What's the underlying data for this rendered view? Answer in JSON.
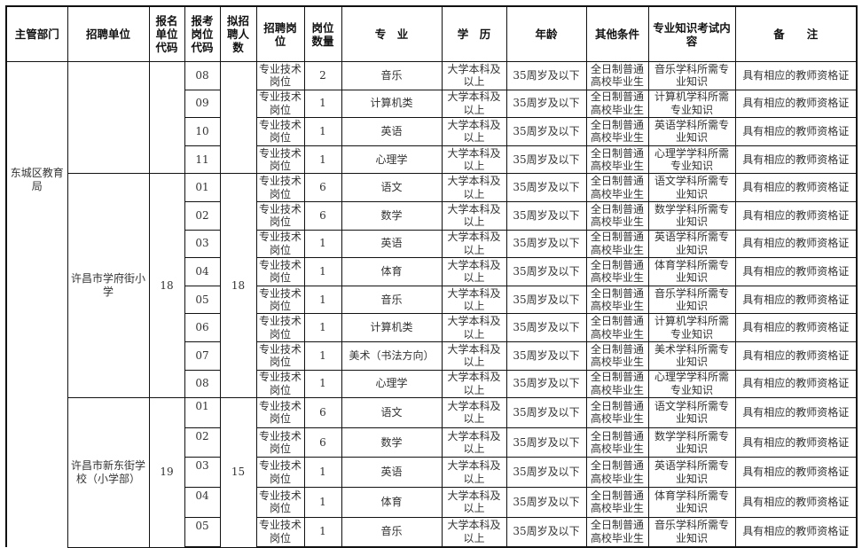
{
  "table": {
    "headers": [
      "主管部门",
      "招聘单位",
      "报名单位代码",
      "报考岗位代码",
      "拟招聘人数",
      "招聘岗位",
      "岗位数量",
      "专　业",
      "学　历",
      "年龄",
      "其他条件",
      "专业知识考试内容",
      "备　　注"
    ],
    "department": "东城区教育局",
    "groups": [
      {
        "unit": "",
        "unit_code": "",
        "hire_count": "",
        "rows": [
          {
            "code": "08",
            "post": "专业技术岗位",
            "num": "2",
            "major": "音乐",
            "edu": "大学本科及以上",
            "age": "35周岁及以下",
            "other": "全日制普通高校毕业生",
            "exam": "音乐学科所需专业知识",
            "note": "具有相应的教师资格证"
          },
          {
            "code": "09",
            "post": "专业技术岗位",
            "num": "1",
            "major": "计算机类",
            "edu": "大学本科及以上",
            "age": "35周岁及以下",
            "other": "全日制普通高校毕业生",
            "exam": "计算机学科所需专业知识",
            "note": "具有相应的教师资格证"
          },
          {
            "code": "10",
            "post": "专业技术岗位",
            "num": "1",
            "major": "英语",
            "edu": "大学本科及以上",
            "age": "35周岁及以下",
            "other": "全日制普通高校毕业生",
            "exam": "英语学科所需专业知识",
            "note": "具有相应的教师资格证"
          },
          {
            "code": "11",
            "post": "专业技术岗位",
            "num": "1",
            "major": "心理学",
            "edu": "大学本科及以上",
            "age": "35周岁及以下",
            "other": "全日制普通高校毕业生",
            "exam": "心理学学科所需专业知识",
            "note": "具有相应的教师资格证"
          }
        ]
      },
      {
        "unit": "许昌市学府街小学",
        "unit_code": "18",
        "hire_count": "18",
        "rows": [
          {
            "code": "01",
            "post": "专业技术岗位",
            "num": "6",
            "major": "语文",
            "edu": "大学本科及以上",
            "age": "35周岁及以下",
            "other": "全日制普通高校毕业生",
            "exam": "语文学科所需专业知识",
            "note": "具有相应的教师资格证"
          },
          {
            "code": "02",
            "post": "专业技术岗位",
            "num": "6",
            "major": "数学",
            "edu": "大学本科及以上",
            "age": "35周岁及以下",
            "other": "全日制普通高校毕业生",
            "exam": "数学学科所需专业知识",
            "note": "具有相应的教师资格证"
          },
          {
            "code": "03",
            "post": "专业技术岗位",
            "num": "1",
            "major": "英语",
            "edu": "大学本科及以上",
            "age": "35周岁及以下",
            "other": "全日制普通高校毕业生",
            "exam": "英语学科所需专业知识",
            "note": "具有相应的教师资格证"
          },
          {
            "code": "04",
            "post": "专业技术岗位",
            "num": "1",
            "major": "体育",
            "edu": "大学本科及以上",
            "age": "35周岁及以下",
            "other": "全日制普通高校毕业生",
            "exam": "体育学科所需专业知识",
            "note": "具有相应的教师资格证"
          },
          {
            "code": "05",
            "post": "专业技术岗位",
            "num": "1",
            "major": "音乐",
            "edu": "大学本科及以上",
            "age": "35周岁及以下",
            "other": "全日制普通高校毕业生",
            "exam": "音乐学科所需专业知识",
            "note": "具有相应的教师资格证"
          },
          {
            "code": "06",
            "post": "专业技术岗位",
            "num": "1",
            "major": "计算机类",
            "edu": "大学本科及以上",
            "age": "35周岁及以下",
            "other": "全日制普通高校毕业生",
            "exam": "计算机学科所需专业知识",
            "note": "具有相应的教师资格证"
          },
          {
            "code": "07",
            "post": "专业技术岗位",
            "num": "1",
            "major": "美术（书法方向）",
            "edu": "大学本科及以上",
            "age": "35周岁及以下",
            "other": "全日制普通高校毕业生",
            "exam": "美术学科所需专业知识",
            "note": "具有相应的教师资格证"
          },
          {
            "code": "08",
            "post": "专业技术岗位",
            "num": "1",
            "major": "心理学",
            "edu": "大学本科及以上",
            "age": "35周岁及以下",
            "other": "全日制普通高校毕业生",
            "exam": "心理学学科所需专业知识",
            "note": "具有相应的教师资格证"
          }
        ]
      },
      {
        "unit": "许昌市新东街学校（小学部）",
        "unit_code": "19",
        "hire_count": "15",
        "code_top": true,
        "rows": [
          {
            "code": "01",
            "post": "专业技术岗位",
            "num": "6",
            "major": "语文",
            "edu": "大学本科及以上",
            "age": "35周岁及以下",
            "other": "全日制普通高校毕业生",
            "exam": "语文学科所需专业知识",
            "note": "具有相应的教师资格证"
          },
          {
            "code": "02",
            "post": "专业技术岗位",
            "num": "6",
            "major": "数学",
            "edu": "大学本科及以上",
            "age": "35周岁及以下",
            "other": "全日制普通高校毕业生",
            "exam": "数学学科所需专业知识",
            "note": "具有相应的教师资格证"
          },
          {
            "code": "03",
            "post": "专业技术岗位",
            "num": "1",
            "major": "英语",
            "edu": "大学本科及以上",
            "age": "35周岁及以下",
            "other": "全日制普通高校毕业生",
            "exam": "英语学科所需专业知识",
            "note": "具有相应的教师资格证"
          },
          {
            "code": "04",
            "post": "专业技术岗位",
            "num": "1",
            "major": "体育",
            "edu": "大学本科及以上",
            "age": "35周岁及以下",
            "other": "全日制普通高校毕业生",
            "exam": "体育学科所需专业知识",
            "note": "具有相应的教师资格证"
          },
          {
            "code": "05",
            "post": "专业技术岗位",
            "num": "1",
            "major": "音乐",
            "edu": "大学本科及以上",
            "age": "35周岁及以下",
            "other": "全日制普通高校毕业生",
            "exam": "音乐学科所需专业知识",
            "note": "具有相应的教师资格证"
          }
        ]
      }
    ]
  }
}
